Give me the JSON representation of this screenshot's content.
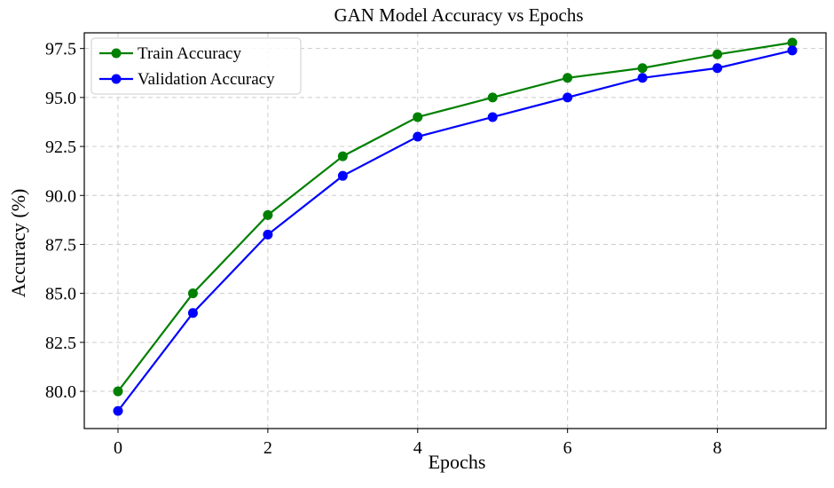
{
  "chart_data": {
    "type": "line",
    "title": "GAN Model Accuracy vs Epochs",
    "xlabel": "Epochs",
    "ylabel": "Accuracy (%)",
    "x": [
      0,
      1,
      2,
      3,
      4,
      5,
      6,
      7,
      8,
      9
    ],
    "xlim": [
      -0.45,
      9.45
    ],
    "ylim": [
      78.1,
      98.3
    ],
    "xticks": [
      0,
      2,
      4,
      6,
      8
    ],
    "yticks": [
      80.0,
      82.5,
      85.0,
      87.5,
      90.0,
      92.5,
      95.0,
      97.5
    ],
    "grid": true,
    "legend_position": "top-left",
    "series": [
      {
        "name": "Train Accuracy",
        "color": "#008000",
        "values": [
          80.0,
          85.0,
          89.0,
          92.0,
          94.0,
          95.0,
          96.0,
          96.5,
          97.2,
          97.8
        ]
      },
      {
        "name": "Validation Accuracy",
        "color": "#0000ff",
        "values": [
          79.0,
          84.0,
          88.0,
          91.0,
          93.0,
          94.0,
          95.0,
          96.0,
          96.5,
          97.4
        ]
      }
    ]
  }
}
